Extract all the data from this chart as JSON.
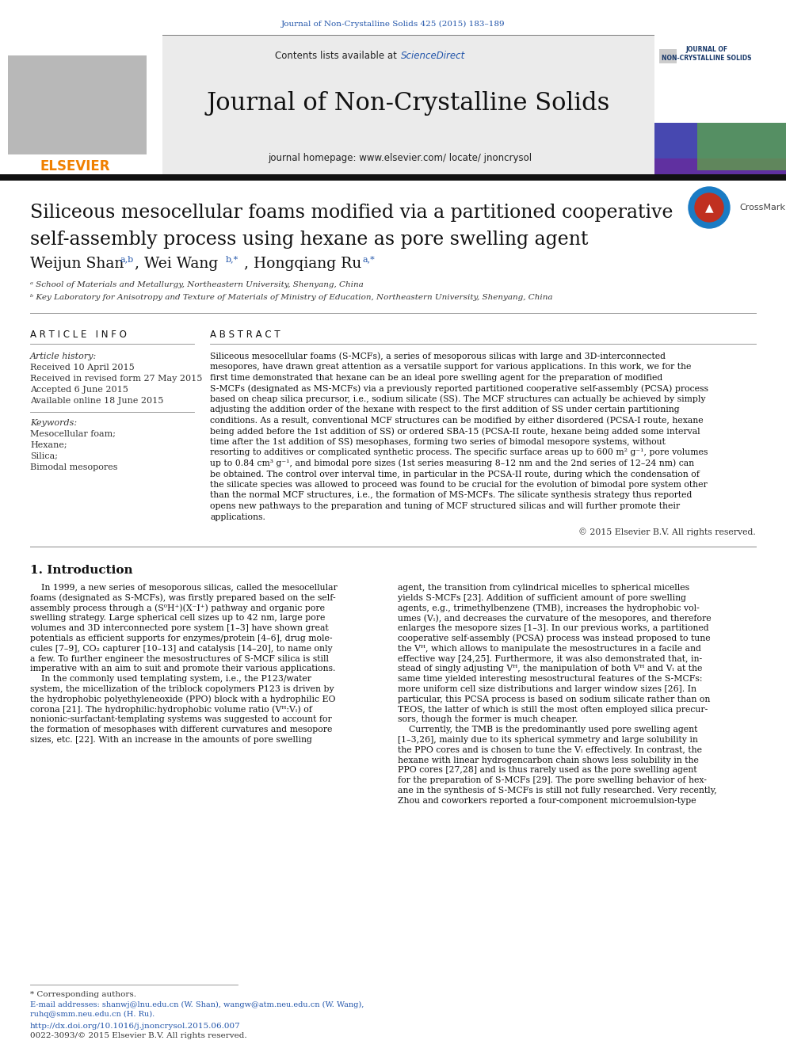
{
  "journal_ref": "Journal of Non-Crystalline Solids 425 (2015) 183–189",
  "journal_name": "Journal of Non-Crystalline Solids",
  "contents_text": "Contents lists available at ",
  "sciencedirect": "ScienceDirect",
  "homepage_text": "journal homepage: www.elsevier.com/ locate/ jnoncrysol",
  "title_line1": "Siliceous mesocellular foams modified via a partitioned cooperative",
  "title_line2": "self-assembly process using hexane as pore swelling agent",
  "author_text": "Weijun Shan ",
  "author_sup1": "a,b",
  "author2": ", Wei Wang ",
  "author_sup2": "b,*",
  "author3": ", Hongqiang Ru ",
  "author_sup3": "a,*",
  "affil_a": "ᵃ School of Materials and Metallurgy, Northeastern University, Shenyang, China",
  "affil_b": "ᵇ Key Laboratory for Anisotropy and Texture of Materials of Ministry of Education, Northeastern University, Shenyang, China",
  "article_info_header": "A R T I C L E   I N F O",
  "abstract_header": "A B S T R A C T",
  "article_history_label": "Article history:",
  "received": "Received 10 April 2015",
  "revised": "Received in revised form 27 May 2015",
  "accepted": "Accepted 6 June 2015",
  "available": "Available online 18 June 2015",
  "keywords_label": "Keywords:",
  "keyword1": "Mesocellular foam;",
  "keyword2": "Hexane;",
  "keyword3": "Silica;",
  "keyword4": "Bimodal mesopores",
  "copyright": "© 2015 Elsevier B.V. All rights reserved.",
  "intro_header": "1. Introduction",
  "footnote_star": "* Corresponding authors.",
  "footnote_email": "E-mail addresses: shanwj@lnu.edu.cn (W. Shan), wangw@atm.neu.edu.cn (W. Wang),",
  "footnote_email2": "ruhq@smm.neu.edu.cn (H. Ru).",
  "footnote_doi": "http://dx.doi.org/10.1016/j.jnoncrysol.2015.06.007",
  "footnote_issn": "0022-3093/© 2015 Elsevier B.V. All rights reserved.",
  "bg_color": "#ffffff",
  "link_color": "#2255aa",
  "elsevier_orange": "#f08000",
  "black": "#111111",
  "gray_text": "#333333",
  "header_gray": "#ebebeb"
}
